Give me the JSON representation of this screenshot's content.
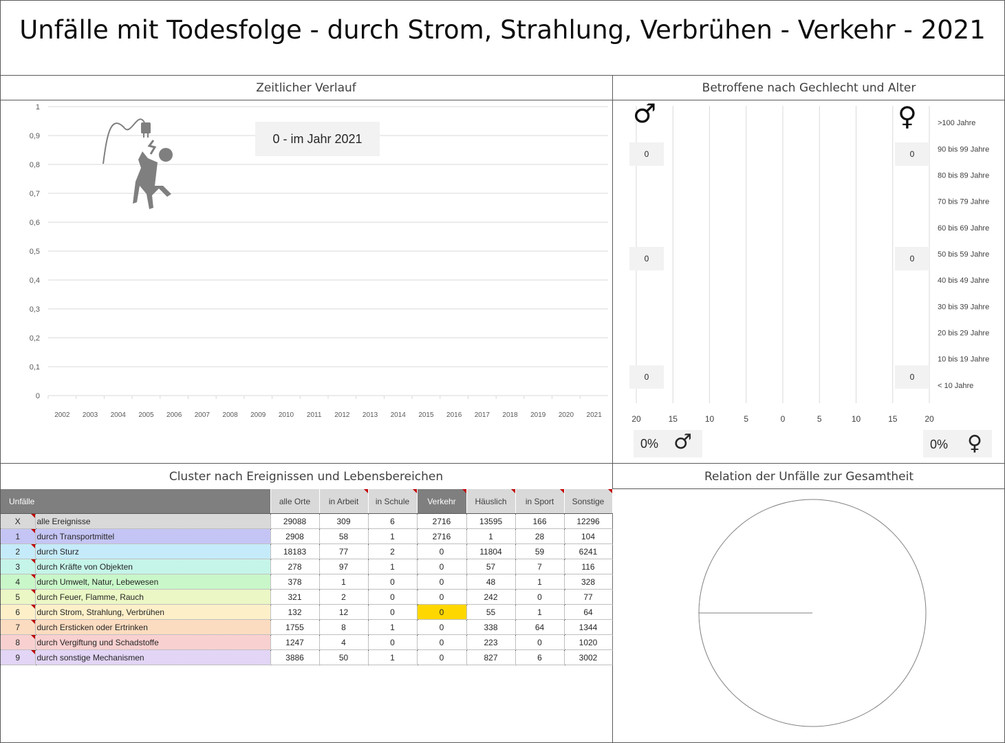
{
  "title": "Unfälle mit Todesfolge - durch Strom, Strahlung, Verbrühen - Verkehr - 2021",
  "sections": {
    "timeline": "Zeitlicher Verlauf",
    "demographics": "Betroffene nach Gechlecht und Alter",
    "cluster": "Cluster nach Ereignissen und Lebensbereichen",
    "relation": "Relation der Unfälle zur Gesamtheit"
  },
  "timeline": {
    "annotation": "0 - im Jahr 2021",
    "icon": "electric-shock-person-icon"
  },
  "chart_data": [
    {
      "type": "line",
      "x": [
        "2002",
        "2003",
        "2004",
        "2005",
        "2006",
        "2007",
        "2008",
        "2009",
        "2010",
        "2011",
        "2012",
        "2013",
        "2014",
        "2015",
        "2016",
        "2017",
        "2018",
        "2019",
        "2020",
        "2021"
      ],
      "series": [
        {
          "values": [
            0,
            0,
            0,
            0,
            0,
            0,
            0,
            0,
            0,
            0,
            0,
            0,
            0,
            0,
            0,
            0,
            0,
            0,
            0,
            0
          ]
        }
      ],
      "yticks": [
        "0",
        "0,1",
        "0,2",
        "0,3",
        "0,4",
        "0,5",
        "0,6",
        "0,7",
        "0,8",
        "0,9",
        "1"
      ],
      "ylim": [
        0,
        1
      ],
      "grid": true
    },
    {
      "type": "bar",
      "orientation": "horizontal",
      "categories": [
        "< 10 Jahre",
        "10 bis 19 Jahre",
        "20 bis 29 Jahre",
        "30 bis 39 Jahre",
        "40 bis 49 Jahre",
        "50 bis 59 Jahre",
        "60 bis 69 Jahre",
        "70 bis 79 Jahre",
        "80 bis 89 Jahre",
        "90 bis 99 Jahre",
        ">100 Jahre"
      ],
      "series": [
        {
          "values": [
            0,
            0,
            0,
            0,
            0,
            0,
            0,
            0,
            0,
            0,
            0
          ]
        },
        {
          "values": [
            0,
            0,
            0,
            0,
            0,
            0,
            0,
            0,
            0,
            0,
            0
          ]
        }
      ],
      "xticks": [
        "20",
        "15",
        "10",
        "5",
        "0",
        "5",
        "10",
        "15",
        "20"
      ],
      "xlim": [
        -20,
        20
      ],
      "grid": true
    },
    {
      "type": "pie",
      "values": [
        100,
        0
      ]
    }
  ],
  "demographics": {
    "male_symbol": "♂",
    "female_symbol": "♀",
    "male_badges": [
      "0",
      "0",
      "0"
    ],
    "female_badges": [
      "0",
      "0",
      "0"
    ],
    "male_percent": "0%",
    "female_percent": "0%"
  },
  "table": {
    "headers": [
      "Unfälle",
      "alle Orte",
      "in Arbeit",
      "in Schule",
      "Verkehr",
      "Häuslich",
      "in Sport",
      "Sonstige"
    ],
    "rows": [
      {
        "id": "X",
        "label": "alle Ereignisse",
        "color": "#d9d9d9",
        "values": [
          "29088",
          "309",
          "6",
          "2716",
          "13595",
          "166",
          "12296"
        ]
      },
      {
        "id": "1",
        "label": "durch Transportmittel",
        "color": "#c5c5f5",
        "values": [
          "2908",
          "58",
          "1",
          "2716",
          "1",
          "28",
          "104"
        ]
      },
      {
        "id": "2",
        "label": "durch Sturz",
        "color": "#c5ebfa",
        "values": [
          "18183",
          "77",
          "2",
          "0",
          "11804",
          "59",
          "6241"
        ]
      },
      {
        "id": "3",
        "label": "durch Kräfte von Objekten",
        "color": "#c5f5e8",
        "values": [
          "278",
          "97",
          "1",
          "0",
          "57",
          "7",
          "116"
        ]
      },
      {
        "id": "4",
        "label": "durch Umwelt, Natur, Lebewesen",
        "color": "#c9f7c9",
        "values": [
          "378",
          "1",
          "0",
          "0",
          "48",
          "1",
          "328"
        ]
      },
      {
        "id": "5",
        "label": "durch Feuer, Flamme, Rauch",
        "color": "#ebf7c5",
        "values": [
          "321",
          "2",
          "0",
          "0",
          "242",
          "0",
          "77"
        ]
      },
      {
        "id": "6",
        "label": "durch Strom, Strahlung, Verbrühen",
        "color": "#fdf0c9",
        "values": [
          "132",
          "12",
          "0",
          "0",
          "55",
          "1",
          "64"
        ]
      },
      {
        "id": "7",
        "label": "durch Ersticken oder Ertrinken",
        "color": "#fcdcc0",
        "values": [
          "1755",
          "8",
          "1",
          "0",
          "338",
          "64",
          "1344"
        ]
      },
      {
        "id": "8",
        "label": "durch Vergiftung und Schadstoffe",
        "color": "#f9d0d0",
        "values": [
          "1247",
          "4",
          "0",
          "0",
          "223",
          "0",
          "1020"
        ]
      },
      {
        "id": "9",
        "label": "durch sonstige Mechanismen",
        "color": "#e2d5f5",
        "values": [
          "3886",
          "50",
          "1",
          "0",
          "827",
          "6",
          "3002"
        ]
      }
    ]
  },
  "colors": {
    "header_gray": "#d9d9d9",
    "header_dark": "#7f7f7f",
    "highlight": "#ffd700",
    "grid": "#d9d9d9"
  }
}
